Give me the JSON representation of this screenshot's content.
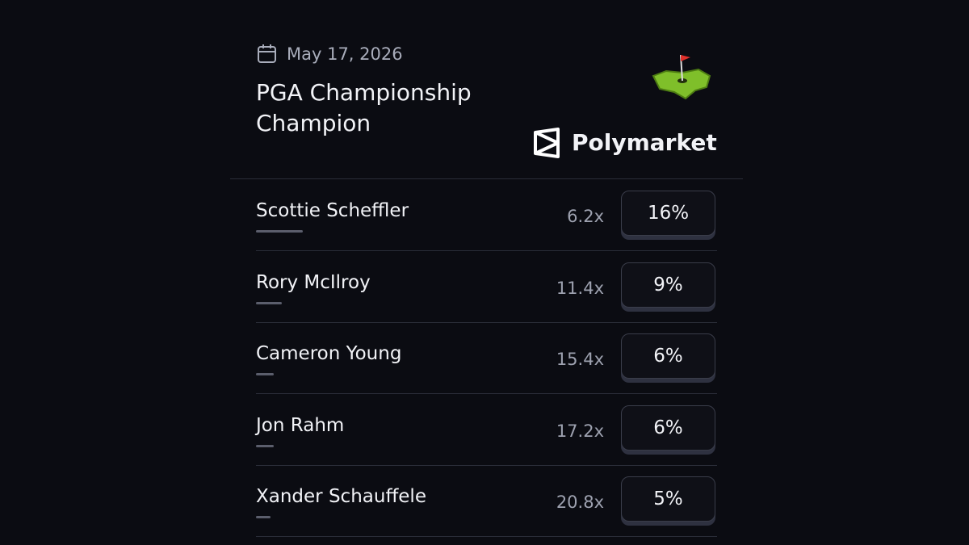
{
  "header": {
    "date": "May 17, 2026",
    "title": "PGA Championship Champion",
    "brand": "Polymarket"
  },
  "rows": [
    {
      "name": "Scottie Scheffler",
      "odds": "6.2x",
      "chance": {
        "value": 16,
        "label": "16%"
      }
    },
    {
      "name": "Rory McIlroy",
      "odds": "11.4x",
      "chance": {
        "value": 9,
        "label": "9%"
      }
    },
    {
      "name": "Cameron Young",
      "odds": "15.4x",
      "chance": {
        "value": 6,
        "label": "6%"
      }
    },
    {
      "name": "Jon Rahm",
      "odds": "17.2x",
      "chance": {
        "value": 6,
        "label": "6%"
      }
    },
    {
      "name": "Xander Schauffele",
      "odds": "20.8x",
      "chance": {
        "value": 5,
        "label": "5%"
      }
    }
  ]
}
